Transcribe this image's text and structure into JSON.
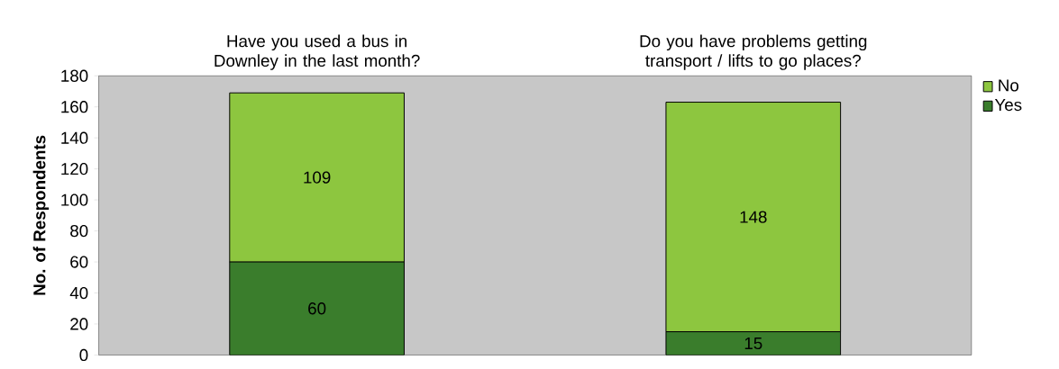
{
  "chart_data": {
    "type": "bar",
    "stacked": true,
    "ylabel": "No. of Respondents",
    "categories": [
      "Have you used a bus in Downley in the last month?",
      "Do you have problems getting transport / lifts to go places?"
    ],
    "series": [
      {
        "name": "Yes",
        "color": "#3a7d2c",
        "values": [
          60,
          15
        ]
      },
      {
        "name": "No",
        "color": "#8dc63f",
        "values": [
          109,
          148
        ]
      }
    ],
    "ylim": [
      0,
      180
    ],
    "yticks": [
      0,
      20,
      40,
      60,
      80,
      100,
      120,
      140,
      160,
      180
    ],
    "grid": false,
    "legend": "right",
    "data_labels": true
  }
}
